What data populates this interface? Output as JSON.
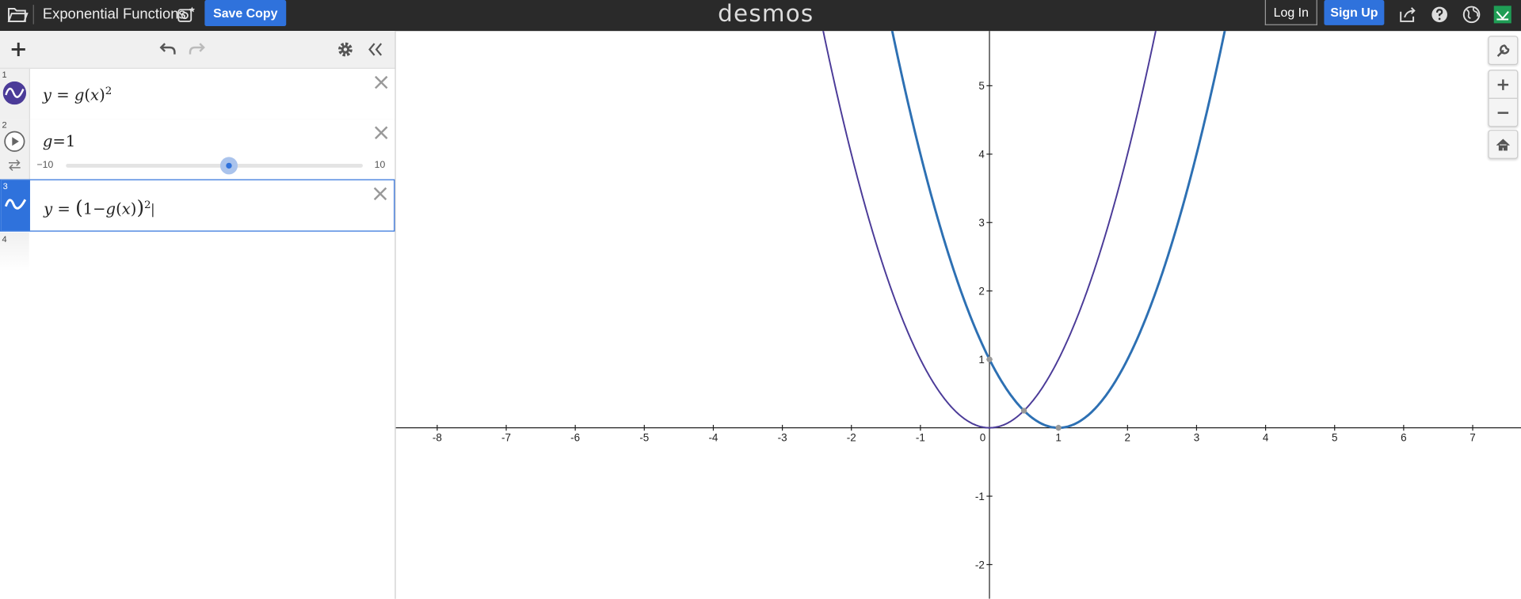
{
  "topbar": {
    "title": "Exponential Functions",
    "save_copy_label": "Save Copy",
    "logo_text": "desmos",
    "login_label": "Log In",
    "signup_label": "Sign Up",
    "accent": "#2f72dc",
    "icons": [
      "folder-icon",
      "screenshot-icon",
      "share-icon",
      "help-icon",
      "globe-icon",
      "user-avatar-icon"
    ]
  },
  "panel": {
    "icons": [
      "add-icon",
      "undo-icon",
      "redo-icon",
      "gear-icon",
      "collapse-icon"
    ],
    "expressions": [
      {
        "num": "1",
        "lhs": "y",
        "eq": "=",
        "fn": "g",
        "arg": "x",
        "power": "2",
        "color": "#4b3b98"
      },
      {
        "num": "2",
        "name": "g",
        "eq": "=",
        "value": "1",
        "slider_min": "−10",
        "slider_max": "10",
        "slider_value": 1
      },
      {
        "num": "3",
        "lhs": "y",
        "eq": "=",
        "one": "1",
        "minus": "−",
        "fn": "g",
        "arg": "x",
        "power": "2",
        "color": "#2d70b3"
      },
      {
        "num": "4"
      }
    ]
  },
  "graph": {
    "x_ticks": [
      "-8",
      "-7",
      "-6",
      "-5",
      "-4",
      "-3",
      "-2",
      "-1",
      "0",
      "1",
      "2",
      "3",
      "4",
      "5",
      "6",
      "7"
    ],
    "y_ticks": [
      "5",
      "4",
      "3",
      "2",
      "1",
      "-1",
      "-2"
    ],
    "xlim": [
      -8.6,
      7.7
    ],
    "ylim": [
      -2.5,
      5.8
    ],
    "tool_icons": [
      "wrench-icon",
      "zoom-in-icon",
      "zoom-out-icon",
      "home-icon"
    ]
  }
}
